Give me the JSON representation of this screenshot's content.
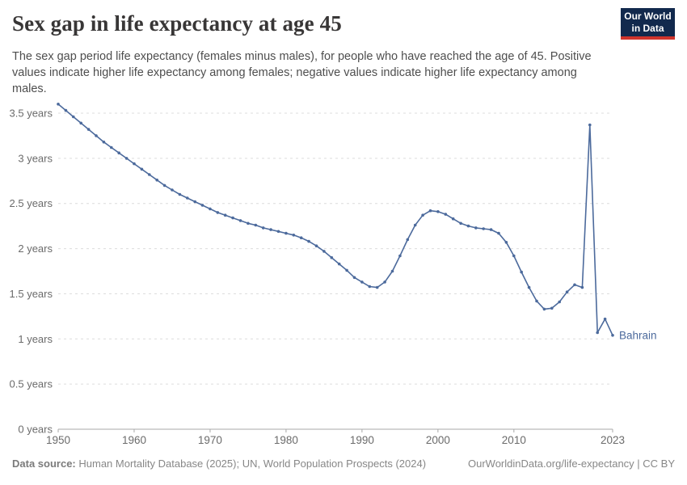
{
  "header": {
    "title": "Sex gap in life expectancy at age 45",
    "subtitle": "The sex gap period life expectancy (females minus males), for people who have reached the age of 45. Positive values indicate higher life expectancy among females; negative values indicate higher life expectancy among males.",
    "logo_line1": "Our World",
    "logo_line2": "in Data"
  },
  "colors": {
    "accent_line": "#4c6a9c",
    "grid": "#dcdcdc",
    "axis": "#a8a8a8",
    "tick_text": "#6b6b6b",
    "logo_bg": "#12294d",
    "logo_red": "#d0342c"
  },
  "chart_data": {
    "type": "line",
    "title": "Sex gap in life expectancy at age 45",
    "xlabel": "",
    "ylabel": "",
    "xlim": [
      1950,
      2023
    ],
    "ylim": [
      0,
      3.66
    ],
    "grid": "horizontal-dashed",
    "legend_position": "end-of-line-label",
    "x_ticks": [
      1950,
      1960,
      1970,
      1980,
      1990,
      2000,
      2010,
      2023
    ],
    "y_ticks": [
      [
        0,
        "0 years"
      ],
      [
        0.5,
        "0.5 years"
      ],
      [
        1,
        "1 years"
      ],
      [
        1.5,
        "1.5 years"
      ],
      [
        2,
        "2 years"
      ],
      [
        2.5,
        "2.5 years"
      ],
      [
        3,
        "3 years"
      ],
      [
        3.5,
        "3.5 years"
      ]
    ],
    "series": [
      {
        "name": "Bahrain",
        "color": "#4c6a9c",
        "x": [
          1950,
          1951,
          1952,
          1953,
          1954,
          1955,
          1956,
          1957,
          1958,
          1959,
          1960,
          1961,
          1962,
          1963,
          1964,
          1965,
          1966,
          1967,
          1968,
          1969,
          1970,
          1971,
          1972,
          1973,
          1974,
          1975,
          1976,
          1977,
          1978,
          1979,
          1980,
          1981,
          1982,
          1983,
          1984,
          1985,
          1986,
          1987,
          1988,
          1989,
          1990,
          1991,
          1992,
          1993,
          1994,
          1995,
          1996,
          1997,
          1998,
          1999,
          2000,
          2001,
          2002,
          2003,
          2004,
          2005,
          2006,
          2007,
          2008,
          2009,
          2010,
          2011,
          2012,
          2013,
          2014,
          2015,
          2016,
          2017,
          2018,
          2019,
          2020,
          2021,
          2022,
          2023
        ],
        "values": [
          3.6,
          3.53,
          3.46,
          3.39,
          3.32,
          3.25,
          3.18,
          3.12,
          3.06,
          3.0,
          2.94,
          2.88,
          2.82,
          2.76,
          2.7,
          2.65,
          2.6,
          2.56,
          2.52,
          2.48,
          2.44,
          2.4,
          2.37,
          2.34,
          2.31,
          2.28,
          2.26,
          2.23,
          2.21,
          2.19,
          2.17,
          2.15,
          2.12,
          2.08,
          2.03,
          1.97,
          1.9,
          1.83,
          1.76,
          1.68,
          1.63,
          1.58,
          1.57,
          1.63,
          1.75,
          1.92,
          2.1,
          2.26,
          2.37,
          2.42,
          2.41,
          2.38,
          2.33,
          2.28,
          2.25,
          2.23,
          2.22,
          2.21,
          2.17,
          2.07,
          1.92,
          1.74,
          1.57,
          1.42,
          1.33,
          1.34,
          1.41,
          1.52,
          1.6,
          1.57,
          3.37,
          1.07,
          1.22,
          1.04
        ]
      }
    ]
  },
  "footer": {
    "source_label": "Data source:",
    "source_text": "Human Mortality Database (2025); UN, World Population Prospects (2024)",
    "link": "OurWorldinData.org/life-expectancy | CC BY"
  }
}
